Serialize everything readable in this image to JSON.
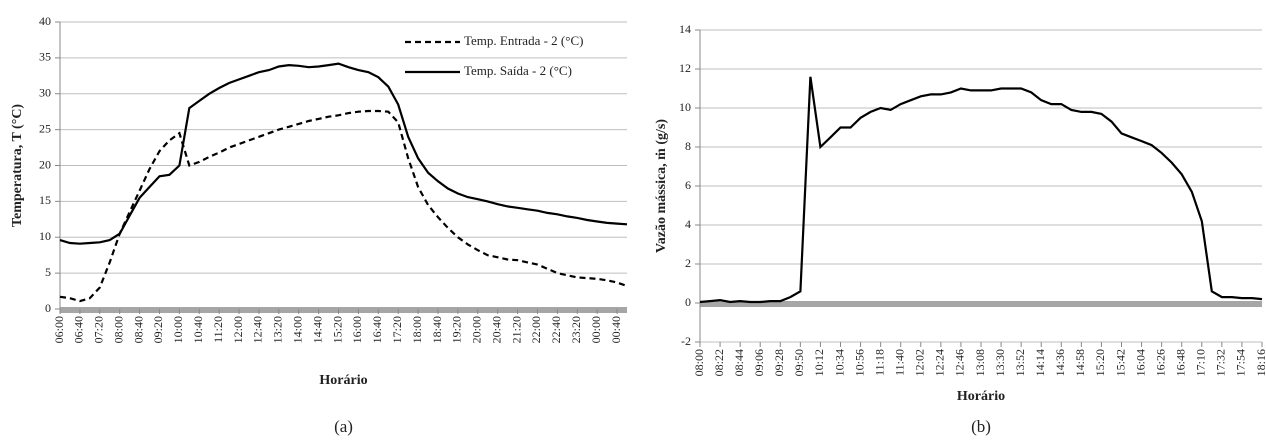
{
  "chart_data": [
    {
      "type": "line",
      "caption": "(a)",
      "x_label": "Horário",
      "y_label": "Temperatura, T (°C)",
      "categories": [
        "06:00",
        null,
        "06:40",
        null,
        "07:20",
        null,
        "08:00",
        null,
        "08:40",
        null,
        "09:20",
        null,
        "10:00",
        null,
        "10:40",
        null,
        "11:20",
        null,
        "12:00",
        null,
        "12:40",
        null,
        "13:20",
        null,
        "14:00",
        null,
        "14:40",
        null,
        "15:20",
        null,
        "16:00",
        null,
        "16:40",
        null,
        "17:20",
        null,
        "18:00",
        null,
        "18:40",
        null,
        "19:20",
        null,
        "20:00",
        null,
        "20:40",
        null,
        "21:20",
        null,
        "22:00",
        null,
        "22:40",
        null,
        "23:20",
        null,
        "00:00",
        null,
        "00:40",
        null
      ],
      "series": [
        {
          "name": "Temp. Entrada - 2 (°C)",
          "color": "#000000",
          "style": "dashed",
          "values": [
            1.7,
            1.5,
            1.1,
            1.5,
            3,
            6.5,
            10.5,
            13.5,
            16.5,
            19.5,
            22,
            23.5,
            24.5,
            20,
            20.5,
            21.2,
            21.8,
            22.5,
            23,
            23.5,
            24,
            24.5,
            25,
            25.4,
            25.8,
            26.2,
            26.5,
            26.8,
            27,
            27.3,
            27.5,
            27.6,
            27.6,
            27.5,
            26,
            21,
            17,
            14.5,
            12.8,
            11.3,
            10,
            9,
            8.2,
            7.5,
            7.2,
            6.9,
            6.8,
            6.5,
            6.2,
            5.6,
            5,
            4.7,
            4.4,
            4.3,
            4.2,
            4,
            3.7,
            3.2
          ]
        },
        {
          "name": "Temp. Saída - 2 (°C)",
          "color": "#000000",
          "style": "solid",
          "values": [
            9.6,
            9.2,
            9.1,
            9.2,
            9.3,
            9.6,
            10.5,
            13,
            15.5,
            17,
            18.5,
            18.7,
            20,
            28,
            29,
            30,
            30.8,
            31.5,
            32,
            32.5,
            33,
            33.3,
            33.8,
            34,
            33.9,
            33.7,
            33.8,
            34,
            34.2,
            33.7,
            33.3,
            33,
            32.3,
            31,
            28.5,
            24,
            21,
            19,
            17.8,
            16.8,
            16.1,
            15.6,
            15.3,
            15,
            14.6,
            14.3,
            14.1,
            13.9,
            13.7,
            13.4,
            13.2,
            12.9,
            12.7,
            12.4,
            12.2,
            12,
            11.9,
            11.8
          ]
        }
      ],
      "ylim": [
        0,
        40
      ],
      "yticks": [
        0,
        5,
        10,
        15,
        20,
        25,
        30,
        35,
        40
      ],
      "grid": true,
      "legend": "upper right"
    },
    {
      "type": "line",
      "caption": "(b)",
      "x_label": "Horário",
      "y_label": "Vazão mássica, ṁ (g/s)",
      "categories": [
        "08:00",
        null,
        "08:22",
        null,
        "08:44",
        null,
        "09:06",
        null,
        "09:28",
        null,
        "09:50",
        null,
        "10:12",
        null,
        "10:34",
        null,
        "10:56",
        null,
        "11:18",
        null,
        "11:40",
        null,
        "12:02",
        null,
        "12:24",
        null,
        "12:46",
        null,
        "13:08",
        null,
        "13:30",
        null,
        "13:52",
        null,
        "14:14",
        null,
        "14:36",
        null,
        "14:58",
        null,
        "15:20",
        null,
        "15:42",
        null,
        "16:04",
        null,
        "16:26",
        null,
        "16:48",
        null,
        "17:10",
        null,
        "17:32",
        null,
        "17:54",
        null,
        "18:16"
      ],
      "values": [
        0.05,
        0.1,
        0.15,
        0.05,
        0.1,
        0.05,
        0.05,
        0.1,
        0.1,
        0.3,
        0.6,
        11.6,
        8,
        8.5,
        9,
        9,
        9.5,
        9.8,
        10,
        9.9,
        10.2,
        10.4,
        10.6,
        10.7,
        10.7,
        10.8,
        11,
        10.9,
        10.9,
        10.9,
        11,
        11,
        11,
        10.8,
        10.4,
        10.2,
        10.2,
        9.9,
        9.8,
        9.8,
        9.7,
        9.3,
        8.7,
        8.5,
        8.3,
        8.1,
        7.7,
        7.2,
        6.6,
        5.7,
        4.2,
        0.6,
        0.3,
        0.3,
        0.25,
        0.25,
        0.2
      ],
      "color": "#000000",
      "ylim": [
        -2,
        14
      ],
      "yticks": [
        -2,
        0,
        2,
        4,
        6,
        8,
        10,
        12,
        14
      ],
      "grid": true
    }
  ]
}
